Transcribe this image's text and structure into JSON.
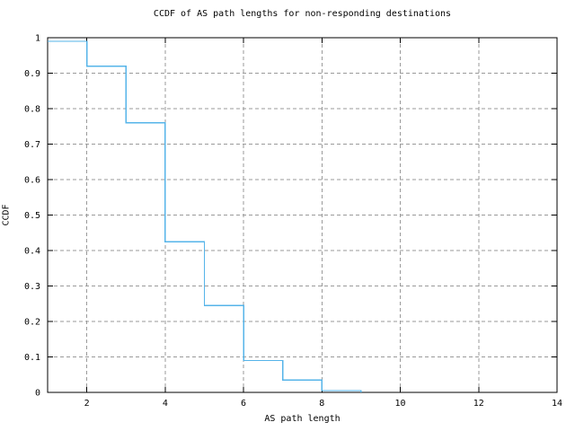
{
  "chart_data": {
    "type": "line",
    "subtype": "step-ccdf",
    "title": "CCDF of AS path lengths for non-responding destinations",
    "xlabel": "AS path length",
    "ylabel": "CCDF",
    "xlim": [
      1,
      14
    ],
    "ylim": [
      0,
      1
    ],
    "grid": true,
    "legend": "none",
    "line_color": "#56b4e9",
    "grid_color": "#9a9a9a",
    "x_ticks": [
      2,
      4,
      6,
      8,
      10,
      12,
      14
    ],
    "y_ticks": {
      "values": [
        0,
        0.1,
        0.2,
        0.3,
        0.4,
        0.5,
        0.6,
        0.7,
        0.8,
        0.9,
        1
      ],
      "labels": [
        "0",
        "0.1",
        "0.2",
        "0.3",
        "0.4",
        "0.5",
        "0.6",
        "0.7",
        "0.8",
        "0.9",
        "1"
      ]
    },
    "series": [
      {
        "name": "ccdf-of-as-path-length",
        "step": "post",
        "points": [
          [
            1,
            0.99
          ],
          [
            2,
            0.92
          ],
          [
            3,
            0.76
          ],
          [
            4,
            0.425
          ],
          [
            5,
            0.245
          ],
          [
            6,
            0.09
          ],
          [
            7,
            0.035
          ],
          [
            8,
            0.005
          ],
          [
            9,
            0
          ]
        ]
      }
    ]
  }
}
